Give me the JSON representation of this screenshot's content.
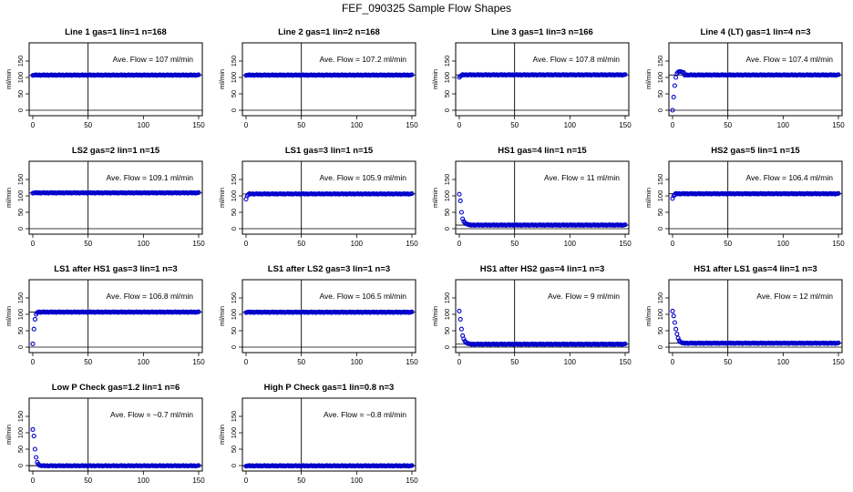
{
  "title": "FEF_090325  Sample Flow Shapes",
  "colors": {
    "points": "#0000cc",
    "axes": "#000000",
    "background": "#ffffff"
  },
  "shared_axes": {
    "ylabel": "ml/min",
    "yticks": [
      "0",
      "50",
      "100",
      "150"
    ],
    "xticks": [
      "0",
      "50",
      "100",
      "150"
    ]
  },
  "chart_data": [
    {
      "type": "scatter",
      "title": "Line 1 gas=1 lin=1 n=168",
      "annotation": "Ave. Flow =  107  ml/min",
      "ave": 107,
      "xlim": [
        0,
        150
      ],
      "ylim": [
        0,
        200
      ],
      "vline": 50,
      "shape": {
        "kind": "flat",
        "start": []
      }
    },
    {
      "type": "scatter",
      "title": "Line 2 gas=1 lin=2 n=168",
      "annotation": "Ave. Flow =  107.2  ml/min",
      "ave": 107.2,
      "xlim": [
        0,
        150
      ],
      "ylim": [
        0,
        200
      ],
      "vline": 50,
      "shape": {
        "kind": "flat",
        "start": []
      }
    },
    {
      "type": "scatter",
      "title": "Line 3 gas=1 lin=3 n=166",
      "annotation": "Ave. Flow =  107.8  ml/min",
      "ave": 107.8,
      "xlim": [
        0,
        150
      ],
      "ylim": [
        0,
        200
      ],
      "vline": 50,
      "shape": {
        "kind": "flat",
        "start": [
          100,
          104,
          106
        ]
      }
    },
    {
      "type": "scatter",
      "title": "Line 4 (LT) gas=1 lin=4 n=3",
      "annotation": "Ave. Flow =  107.4  ml/min",
      "ave": 107.4,
      "xlim": [
        0,
        150
      ],
      "ylim": [
        0,
        200
      ],
      "vline": 50,
      "shape": {
        "kind": "flat",
        "start": [
          0,
          40,
          75,
          100,
          112,
          116,
          118,
          118,
          117,
          116,
          115
        ]
      }
    },
    {
      "type": "scatter",
      "title": "LS2 gas=2 lin=1 n=15",
      "annotation": "Ave. Flow =  109.1  ml/min",
      "ave": 109.1,
      "xlim": [
        0,
        150
      ],
      "ylim": [
        0,
        200
      ],
      "vline": 50,
      "shape": {
        "kind": "flat",
        "start": []
      }
    },
    {
      "type": "scatter",
      "title": "LS1 gas=3 lin=1 n=15",
      "annotation": "Ave. Flow =  105.9  ml/min",
      "ave": 105.9,
      "xlim": [
        0,
        150
      ],
      "ylim": [
        0,
        200
      ],
      "vline": 50,
      "shape": {
        "kind": "flat",
        "start": [
          90,
          100,
          104
        ]
      }
    },
    {
      "type": "scatter",
      "title": "HS1 gas=4 lin=1 n=15",
      "annotation": "Ave. Flow =  11  ml/min",
      "ave": 11,
      "xlim": [
        0,
        150
      ],
      "ylim": [
        0,
        200
      ],
      "vline": 50,
      "shape": {
        "kind": "decay",
        "start": [
          105,
          85,
          50,
          30,
          22,
          18,
          15,
          14,
          13
        ]
      }
    },
    {
      "type": "scatter",
      "title": "HS2 gas=5 lin=1 n=15",
      "annotation": "Ave. Flow =  106.4  ml/min",
      "ave": 106.4,
      "xlim": [
        0,
        150
      ],
      "ylim": [
        0,
        200
      ],
      "vline": 50,
      "shape": {
        "kind": "flat",
        "start": [
          92,
          100,
          104
        ]
      }
    },
    {
      "type": "scatter",
      "title": "LS1 after HS1 gas=3 lin=1 n=3",
      "annotation": "Ave. Flow =  106.8  ml/min",
      "ave": 106.8,
      "xlim": [
        0,
        150
      ],
      "ylim": [
        0,
        200
      ],
      "vline": 50,
      "shape": {
        "kind": "flat",
        "start": [
          10,
          55,
          85,
          100,
          105,
          107
        ]
      }
    },
    {
      "type": "scatter",
      "title": "LS1 after LS2 gas=3 lin=1 n=3",
      "annotation": "Ave. Flow =  106.5  ml/min",
      "ave": 106.5,
      "xlim": [
        0,
        150
      ],
      "ylim": [
        0,
        200
      ],
      "vline": 50,
      "shape": {
        "kind": "flat",
        "start": []
      }
    },
    {
      "type": "scatter",
      "title": "HS1 after HS2 gas=4 lin=1 n=3",
      "annotation": "Ave. Flow =  9  ml/min",
      "ave": 9,
      "xlim": [
        0,
        150
      ],
      "ylim": [
        0,
        200
      ],
      "vline": 50,
      "shape": {
        "kind": "decay",
        "start": [
          110,
          85,
          55,
          35,
          25,
          18,
          15,
          12,
          11,
          10
        ]
      }
    },
    {
      "type": "scatter",
      "title": "HS1 after LS1 gas=4 lin=1 n=3",
      "annotation": "Ave. Flow =  12  ml/min",
      "ave": 12,
      "xlim": [
        0,
        150
      ],
      "ylim": [
        0,
        200
      ],
      "vline": 50,
      "shape": {
        "kind": "decay",
        "start": [
          110,
          95,
          75,
          55,
          40,
          28,
          20,
          16,
          14
        ]
      }
    },
    {
      "type": "scatter",
      "title": "Low P Check gas=1.2 lin=1 n=6",
      "annotation": "Ave. Flow =  −0.7  ml/min",
      "ave": -0.7,
      "xlim": [
        0,
        150
      ],
      "ylim": [
        0,
        200
      ],
      "vline": 50,
      "shape": {
        "kind": "decay",
        "start": [
          110,
          90,
          50,
          25,
          10,
          4,
          1,
          0
        ]
      }
    },
    {
      "type": "scatter",
      "title": "High P Check gas=1 lin=0.8 n=3",
      "annotation": "Ave. Flow =  −0.8  ml/min",
      "ave": -0.8,
      "xlim": [
        0,
        150
      ],
      "ylim": [
        0,
        200
      ],
      "vline": 50,
      "shape": {
        "kind": "flat",
        "start": []
      }
    }
  ]
}
